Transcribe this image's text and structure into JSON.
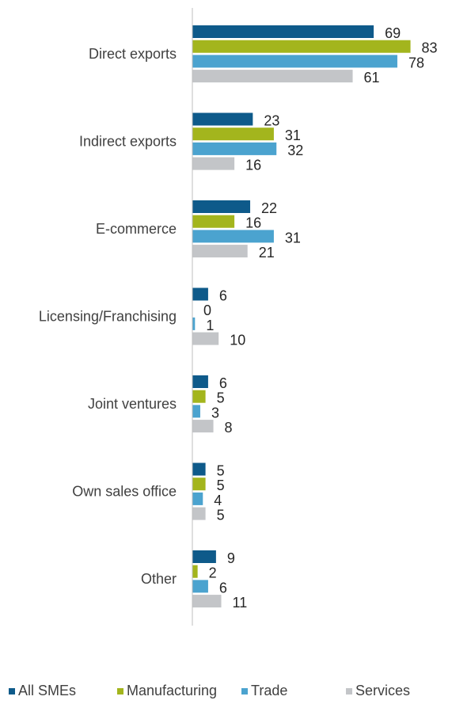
{
  "chart_data": {
    "type": "bar",
    "orientation": "horizontal",
    "categories": [
      "Direct exports",
      "Indirect exports",
      "E-commerce",
      "Licensing/Franchising",
      "Joint ventures",
      "Own sales office",
      "Other"
    ],
    "series": [
      {
        "name": "All SMEs",
        "color": "#0e5a8a",
        "values": [
          69,
          23,
          22,
          6,
          6,
          5,
          9
        ]
      },
      {
        "name": "Manufacturing",
        "color": "#a3b51d",
        "values": [
          83,
          31,
          16,
          0,
          5,
          5,
          2
        ]
      },
      {
        "name": "Trade",
        "color": "#4ba3cf",
        "values": [
          78,
          32,
          31,
          1,
          3,
          4,
          6
        ]
      },
      {
        "name": "Services",
        "color": "#c3c5c8",
        "values": [
          61,
          16,
          21,
          10,
          8,
          5,
          11
        ]
      }
    ],
    "xlim": [
      0,
      90
    ],
    "grid": false,
    "legend_position": "bottom"
  }
}
